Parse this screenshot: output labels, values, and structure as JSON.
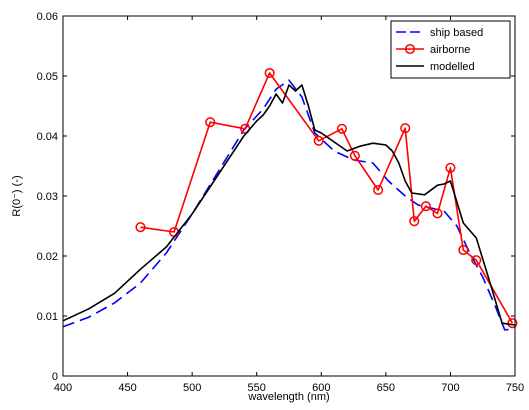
{
  "chart_data": {
    "type": "line",
    "title": "",
    "xlabel": "wavelength (nm)",
    "ylabel": "R(0⁻) (-)",
    "xlim": [
      400,
      750
    ],
    "ylim": [
      0,
      0.06
    ],
    "xticks": [
      400,
      450,
      500,
      550,
      600,
      650,
      700,
      750
    ],
    "yticks": [
      0,
      0.01,
      0.02,
      0.03,
      0.04,
      0.05,
      0.06
    ],
    "xtick_labels": [
      "400",
      "450",
      "500",
      "550",
      "600",
      "650",
      "700",
      "750"
    ],
    "ytick_labels": [
      "0",
      "0.01",
      "0.02",
      "0.03",
      "0.04",
      "0.05",
      "0.06"
    ],
    "grid": false,
    "legend_position": "top-right",
    "legend": [
      "ship based",
      "airborne",
      "modelled"
    ],
    "series": [
      {
        "name": "ship based",
        "style": "dashed",
        "color": "#0000ff",
        "x": [
          400,
          420,
          440,
          460,
          480,
          500,
          520,
          540,
          555,
          565,
          575,
          585,
          595,
          610,
          625,
          640,
          652,
          665,
          675,
          685,
          695,
          705,
          715,
          725,
          735,
          742,
          750
        ],
        "y": [
          0.0082,
          0.0098,
          0.0122,
          0.0155,
          0.0205,
          0.027,
          0.034,
          0.041,
          0.0445,
          0.0478,
          0.0493,
          0.0465,
          0.0405,
          0.0375,
          0.036,
          0.0355,
          0.0325,
          0.03,
          0.0285,
          0.028,
          0.0275,
          0.025,
          0.0205,
          0.0165,
          0.0115,
          0.0077,
          0.0078
        ]
      },
      {
        "name": "airborne",
        "style": "solid-markers",
        "color": "#ff0000",
        "x": [
          460,
          486,
          514,
          541,
          560,
          598,
          616,
          626,
          644,
          665,
          672,
          681,
          690,
          700,
          710,
          720,
          748
        ],
        "y": [
          0.0248,
          0.024,
          0.0423,
          0.0412,
          0.0505,
          0.0392,
          0.0412,
          0.0367,
          0.031,
          0.0413,
          0.0258,
          0.0283,
          0.0271,
          0.0347,
          0.021,
          0.0193,
          0.0088
        ]
      },
      {
        "name": "modelled",
        "style": "solid",
        "color": "#000000",
        "x": [
          400,
          420,
          440,
          460,
          480,
          500,
          520,
          540,
          550,
          555,
          560,
          565,
          570,
          575,
          580,
          585,
          590,
          595,
          600,
          610,
          620,
          630,
          640,
          650,
          655,
          660,
          665,
          670,
          680,
          690,
          695,
          700,
          705,
          710,
          720,
          730,
          740,
          750
        ],
        "y": [
          0.0092,
          0.0112,
          0.0138,
          0.0178,
          0.0215,
          0.027,
          0.0335,
          0.04,
          0.0425,
          0.0435,
          0.045,
          0.047,
          0.0455,
          0.0485,
          0.0475,
          0.0485,
          0.045,
          0.041,
          0.0405,
          0.039,
          0.0375,
          0.0383,
          0.0388,
          0.0385,
          0.0375,
          0.0355,
          0.0325,
          0.0305,
          0.0302,
          0.0318,
          0.032,
          0.0325,
          0.029,
          0.0255,
          0.023,
          0.016,
          0.0088,
          0.0085
        ]
      }
    ]
  }
}
